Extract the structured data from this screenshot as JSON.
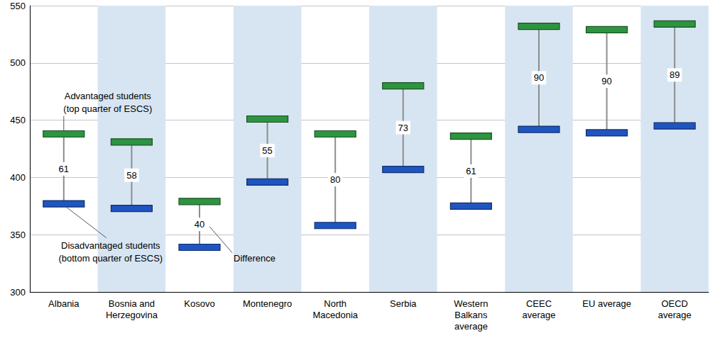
{
  "chart_data": {
    "type": "dumbbell",
    "categories": [
      "Albania",
      "Bosnia and\nHerzegovina",
      "Kosovo",
      "Montenegro",
      "North\nMacedonia",
      "Serbia",
      "Western\nBalkans\naverage",
      "CEEC\naverage",
      "EU average",
      "OECD\naverage"
    ],
    "series": [
      {
        "name": "Advantaged students\n(top quarter of ESCS)",
        "color": "#2e9440",
        "values": [
          438,
          431,
          379,
          451,
          438,
          480,
          436,
          532,
          529,
          534
        ]
      },
      {
        "name": "Disadvantaged students\n(bottom quarter of ESCS)",
        "color": "#1f55c0",
        "values": [
          377,
          373,
          339,
          396,
          358,
          407,
          375,
          442,
          439,
          445
        ]
      }
    ],
    "differences": {
      "name": "Difference",
      "values": [
        61,
        58,
        40,
        55,
        80,
        73,
        61,
        90,
        90,
        89
      ]
    },
    "data_labels": true,
    "ylim": [
      300,
      550
    ],
    "yticks": [
      300,
      350,
      400,
      450,
      500,
      550
    ],
    "grid": true
  }
}
